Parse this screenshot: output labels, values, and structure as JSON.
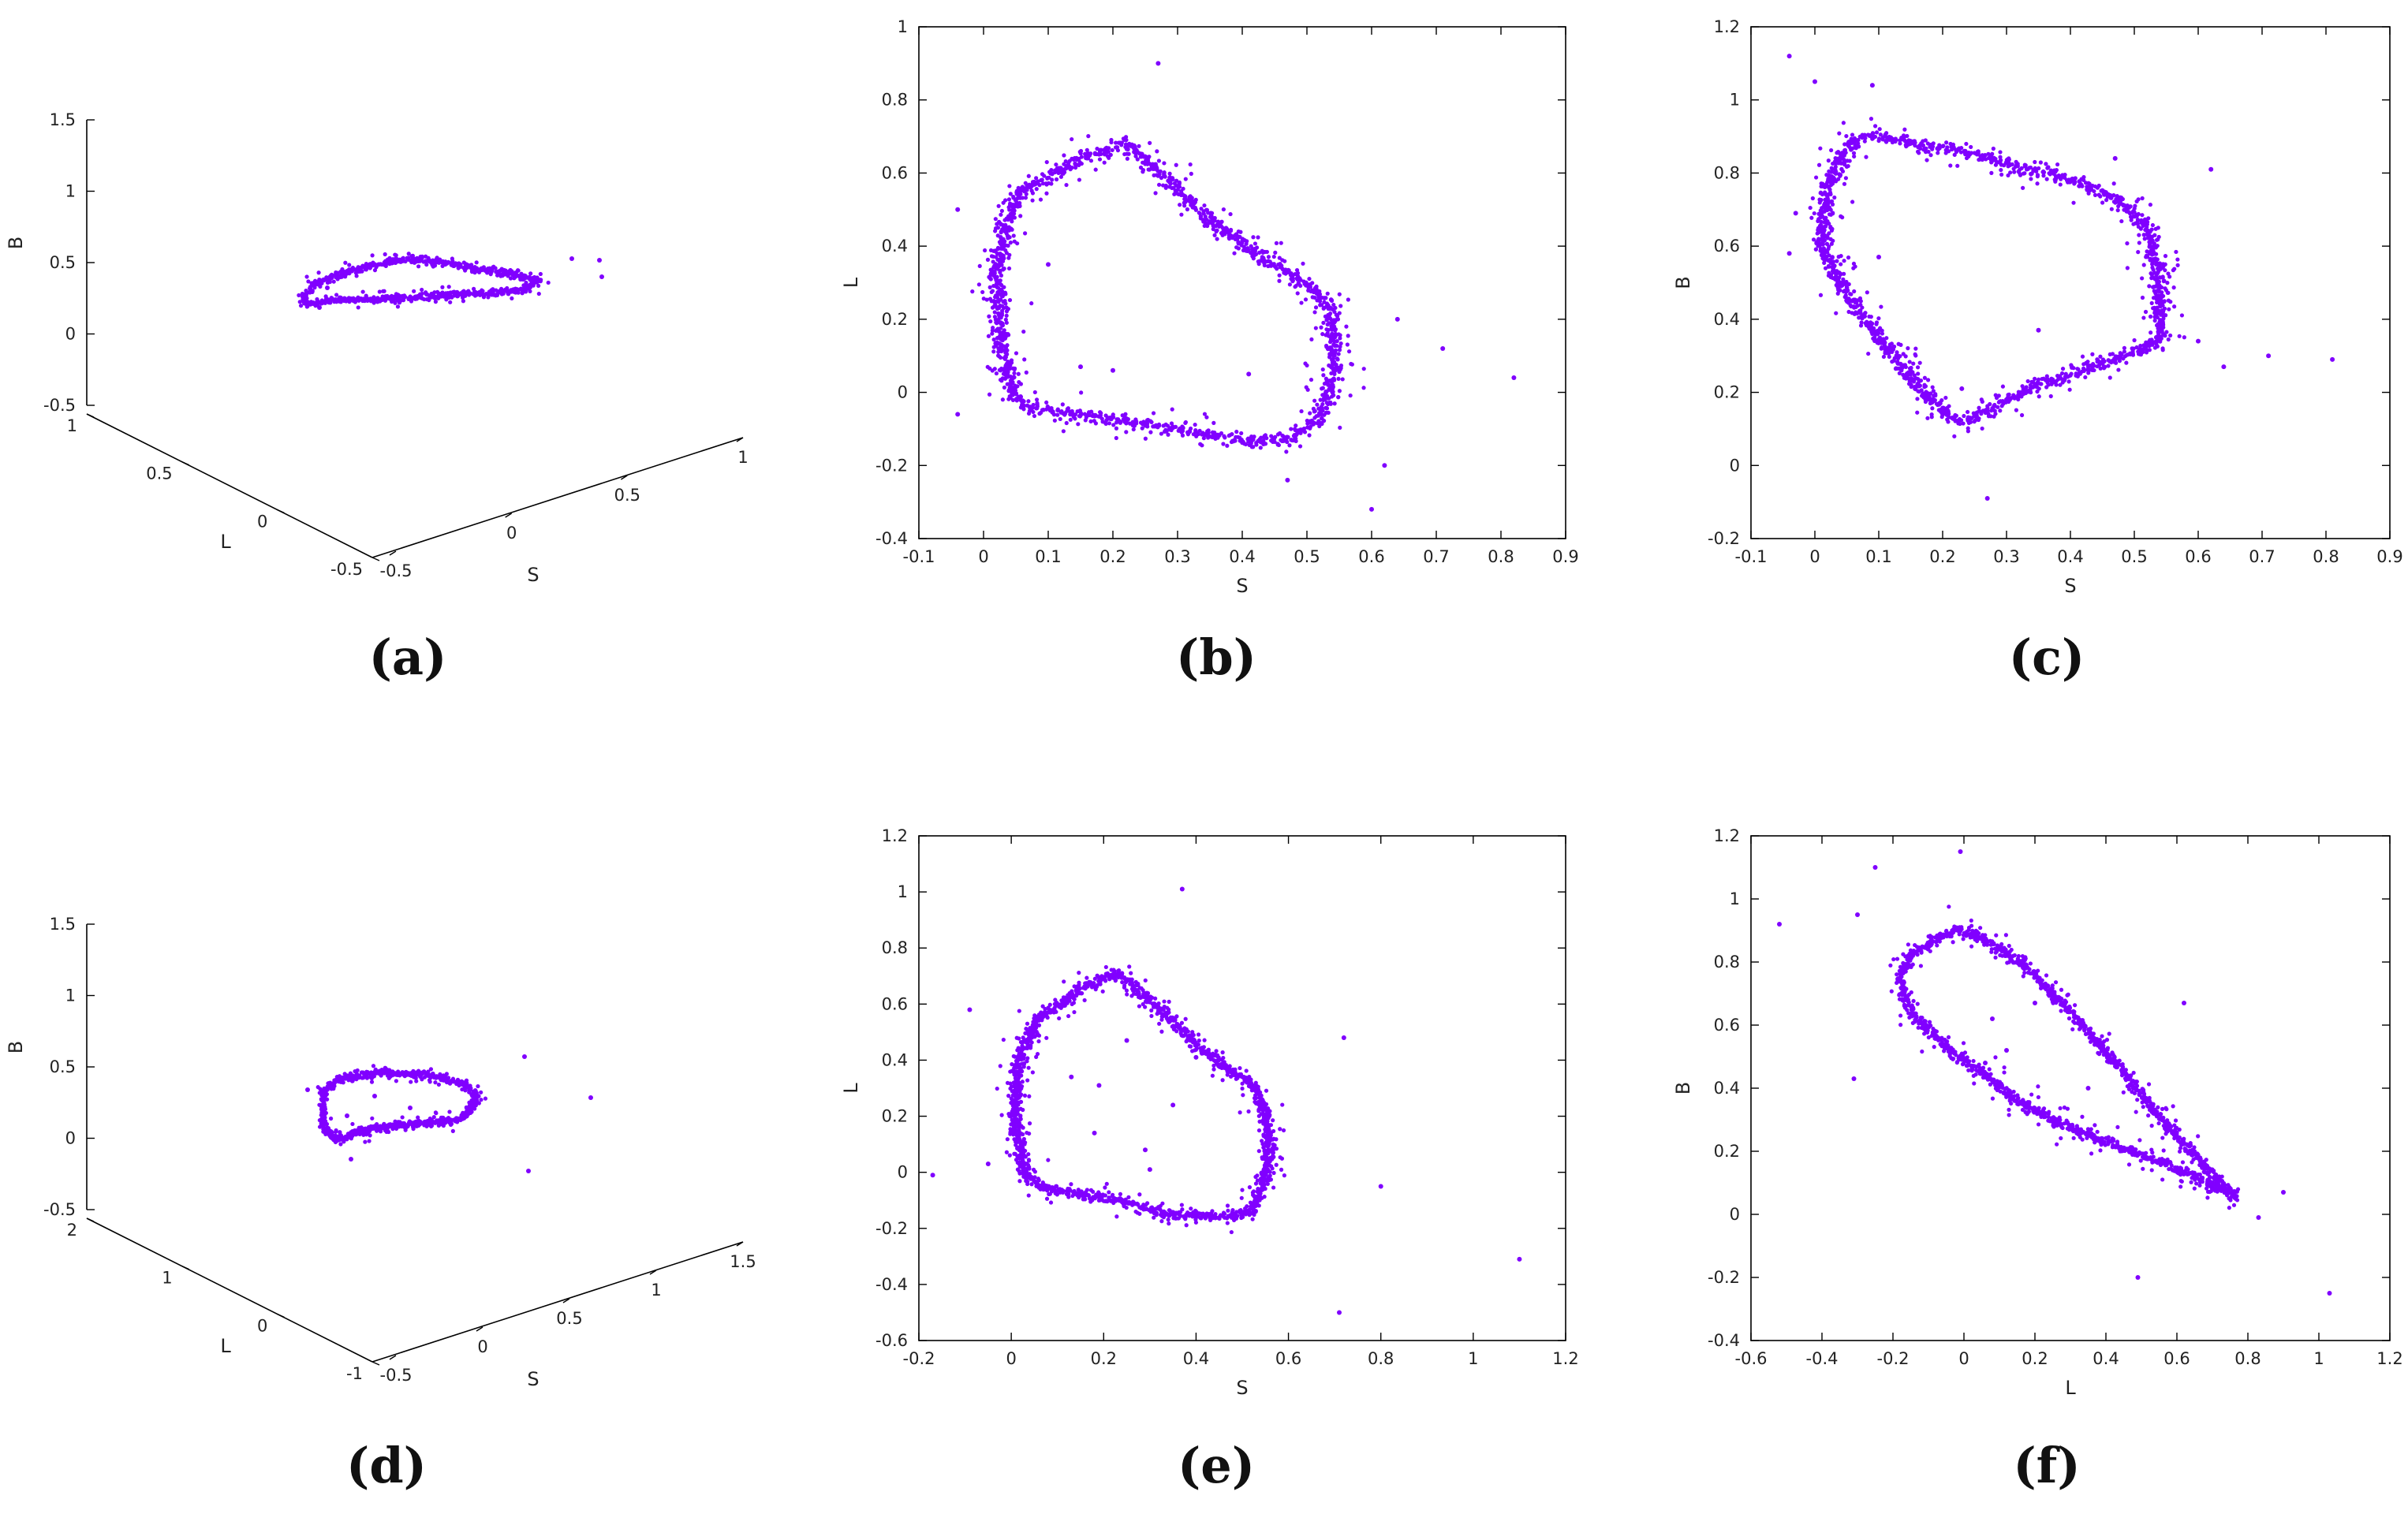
{
  "chart_data": [
    {
      "id": "a",
      "type": "scatter",
      "projection": "3d",
      "caption": "(a)",
      "xlabel": "S",
      "ylabel": "L",
      "zlabel": "B",
      "xticks": [
        "-0.5",
        "0",
        "0.5",
        "1"
      ],
      "yticks": [
        "-0.5",
        "0",
        "0.5",
        "1"
      ],
      "zticks": [
        "-0.5",
        "0",
        "0.5",
        "1",
        "1.5"
      ],
      "xlim": [
        -0.5,
        1
      ],
      "ylim": [
        -0.5,
        1
      ],
      "zlim": [
        -0.5,
        1.5
      ],
      "color": "#8000ff",
      "points": [
        [
          0.25,
          0.7,
          0.3
        ],
        [
          0.05,
          0.55,
          0.3
        ],
        [
          0.4,
          0.0,
          0.35
        ],
        [
          0.55,
          -0.1,
          0.4
        ],
        [
          0.45,
          0.2,
          0.2
        ],
        [
          0.1,
          0.65,
          0.5
        ],
        [
          0.3,
          0.4,
          0.45
        ],
        [
          0.6,
          -0.2,
          0.45
        ]
      ]
    },
    {
      "id": "b",
      "type": "scatter",
      "caption": "(b)",
      "xlabel": "S",
      "ylabel": "L",
      "xlim": [
        -0.1,
        0.9
      ],
      "ylim": [
        -0.4,
        1
      ],
      "xticks": [
        "-0.1",
        "0",
        "0.1",
        "0.2",
        "0.3",
        "0.4",
        "0.5",
        "0.6",
        "0.7",
        "0.8",
        "0.9"
      ],
      "yticks": [
        "-0.4",
        "-0.2",
        "0",
        "0.2",
        "0.4",
        "0.6",
        "0.8",
        "1"
      ],
      "color": "#8000ff",
      "loop": [
        [
          0.03,
          0.45
        ],
        [
          0.06,
          0.55
        ],
        [
          0.15,
          0.64
        ],
        [
          0.22,
          0.68
        ],
        [
          0.25,
          0.64
        ],
        [
          0.35,
          0.47
        ],
        [
          0.42,
          0.38
        ],
        [
          0.52,
          0.27
        ],
        [
          0.54,
          0.2
        ],
        [
          0.54,
          0.05
        ],
        [
          0.52,
          -0.07
        ],
        [
          0.47,
          -0.13
        ],
        [
          0.4,
          -0.13
        ],
        [
          0.3,
          -0.1
        ],
        [
          0.15,
          -0.06
        ],
        [
          0.07,
          -0.04
        ],
        [
          0.05,
          -0.02
        ],
        [
          0.03,
          0.1
        ],
        [
          0.02,
          0.3
        ]
      ],
      "outliers": [
        [
          0.82,
          0.04
        ],
        [
          0.71,
          0.12
        ],
        [
          0.64,
          0.2
        ],
        [
          0.62,
          -0.2
        ],
        [
          0.6,
          -0.32
        ],
        [
          0.27,
          0.9
        ],
        [
          0.2,
          0.06
        ],
        [
          0.15,
          0.07
        ],
        [
          0.1,
          0.35
        ],
        [
          0.41,
          0.05
        ],
        [
          -0.04,
          -0.06
        ],
        [
          -0.04,
          0.5
        ],
        [
          0.47,
          -0.24
        ]
      ]
    },
    {
      "id": "c",
      "type": "scatter",
      "caption": "(c)",
      "xlabel": "S",
      "ylabel": "B",
      "xlim": [
        -0.1,
        0.9
      ],
      "ylim": [
        -0.2,
        1.2
      ],
      "xticks": [
        "-0.1",
        "0",
        "0.1",
        "0.2",
        "0.3",
        "0.4",
        "0.5",
        "0.6",
        "0.7",
        "0.8",
        "0.9"
      ],
      "yticks": [
        "-0.2",
        "0",
        "0.2",
        "0.4",
        "0.6",
        "0.8",
        "1",
        "1.2"
      ],
      "color": "#8000ff",
      "loop": [
        [
          0.02,
          0.75
        ],
        [
          0.04,
          0.85
        ],
        [
          0.07,
          0.9
        ],
        [
          0.1,
          0.9
        ],
        [
          0.25,
          0.85
        ],
        [
          0.4,
          0.78
        ],
        [
          0.48,
          0.72
        ],
        [
          0.52,
          0.65
        ],
        [
          0.54,
          0.5
        ],
        [
          0.54,
          0.35
        ],
        [
          0.52,
          0.32
        ],
        [
          0.45,
          0.28
        ],
        [
          0.35,
          0.22
        ],
        [
          0.3,
          0.18
        ],
        [
          0.24,
          0.12
        ],
        [
          0.21,
          0.13
        ],
        [
          0.17,
          0.2
        ],
        [
          0.1,
          0.35
        ],
        [
          0.05,
          0.47
        ],
        [
          0.01,
          0.6
        ]
      ],
      "outliers": [
        [
          -0.04,
          1.12
        ],
        [
          0.0,
          1.05
        ],
        [
          0.09,
          1.04
        ],
        [
          0.71,
          0.3
        ],
        [
          0.81,
          0.29
        ],
        [
          0.62,
          0.81
        ],
        [
          0.6,
          0.34
        ],
        [
          0.64,
          0.27
        ],
        [
          0.47,
          0.84
        ],
        [
          0.35,
          0.37
        ],
        [
          0.27,
          -0.09
        ],
        [
          0.23,
          0.21
        ],
        [
          0.1,
          0.57
        ],
        [
          -0.03,
          0.69
        ],
        [
          -0.04,
          0.58
        ]
      ]
    },
    {
      "id": "d",
      "type": "scatter",
      "projection": "3d",
      "caption": "(d)",
      "xlabel": "S",
      "ylabel": "L",
      "zlabel": "B",
      "xticks": [
        "-0.5",
        "0",
        "0.5",
        "1",
        "1.5"
      ],
      "yticks": [
        "-1",
        "0",
        "1",
        "2"
      ],
      "zticks": [
        "-0.5",
        "0",
        "0.5",
        "1",
        "1.5"
      ],
      "xlim": [
        -0.5,
        1.5
      ],
      "ylim": [
        -1,
        2
      ],
      "zlim": [
        -0.5,
        1.5
      ],
      "color": "#8000ff",
      "points": [
        [
          0.3,
          0.6,
          0.3
        ],
        [
          0.1,
          0.2,
          0.4
        ],
        [
          0.5,
          -0.2,
          0.35
        ],
        [
          0.6,
          0.0,
          0.2
        ],
        [
          0.7,
          -0.5,
          0.1
        ],
        [
          0.2,
          0.8,
          0.1
        ],
        [
          0.4,
          0.3,
          0.6
        ],
        [
          1.2,
          -0.9,
          0.5
        ],
        [
          0.8,
          -0.3,
          0.5
        ],
        [
          0.5,
          0.4,
          -0.1
        ]
      ]
    },
    {
      "id": "e",
      "type": "scatter",
      "caption": "(e)",
      "xlabel": "S",
      "ylabel": "L",
      "xlim": [
        -0.2,
        1.2
      ],
      "ylim": [
        -0.6,
        1.2
      ],
      "xticks": [
        "-0.2",
        "0",
        "0.2",
        "0.4",
        "0.6",
        "0.8",
        "1",
        "1.2"
      ],
      "yticks": [
        "-0.6",
        "-0.4",
        "-0.2",
        "0",
        "0.2",
        "0.4",
        "0.6",
        "0.8",
        "1",
        "1.2"
      ],
      "color": "#8000ff",
      "loop": [
        [
          0.02,
          0.42
        ],
        [
          0.06,
          0.55
        ],
        [
          0.15,
          0.65
        ],
        [
          0.23,
          0.71
        ],
        [
          0.27,
          0.66
        ],
        [
          0.36,
          0.52
        ],
        [
          0.45,
          0.39
        ],
        [
          0.53,
          0.3
        ],
        [
          0.56,
          0.15
        ],
        [
          0.55,
          -0.02
        ],
        [
          0.52,
          -0.14
        ],
        [
          0.45,
          -0.16
        ],
        [
          0.35,
          -0.15
        ],
        [
          0.2,
          -0.09
        ],
        [
          0.07,
          -0.06
        ],
        [
          0.03,
          -0.01
        ],
        [
          0.01,
          0.15
        ],
        [
          0.01,
          0.3
        ]
      ],
      "outliers": [
        [
          1.1,
          -0.31
        ],
        [
          0.72,
          0.48
        ],
        [
          0.8,
          -0.05
        ],
        [
          0.71,
          -0.5
        ],
        [
          -0.17,
          -0.01
        ],
        [
          -0.09,
          0.58
        ],
        [
          -0.05,
          0.03
        ],
        [
          0.37,
          1.01
        ],
        [
          0.13,
          0.34
        ],
        [
          0.19,
          0.31
        ],
        [
          0.35,
          0.24
        ],
        [
          0.29,
          0.08
        ],
        [
          0.18,
          0.14
        ],
        [
          0.3,
          0.01
        ],
        [
          0.4,
          0.41
        ],
        [
          0.25,
          0.47
        ]
      ]
    },
    {
      "id": "f",
      "type": "scatter",
      "caption": "(f)",
      "xlabel": "L",
      "ylabel": "B",
      "xlim": [
        -0.6,
        1.2
      ],
      "ylim": [
        -0.4,
        1.2
      ],
      "xticks": [
        "-0.6",
        "-0.4",
        "-0.2",
        "0",
        "0.2",
        "0.4",
        "0.6",
        "0.8",
        "1",
        "1.2"
      ],
      "yticks": [
        "-0.4",
        "-0.2",
        "0",
        "0.2",
        "0.4",
        "0.6",
        "0.8",
        "1",
        "1.2"
      ],
      "color": "#8000ff",
      "loop": [
        [
          -0.18,
          0.75
        ],
        [
          -0.15,
          0.82
        ],
        [
          -0.08,
          0.87
        ],
        [
          -0.02,
          0.9
        ],
        [
          0.05,
          0.88
        ],
        [
          0.18,
          0.78
        ],
        [
          0.32,
          0.62
        ],
        [
          0.45,
          0.45
        ],
        [
          0.58,
          0.27
        ],
        [
          0.68,
          0.15
        ],
        [
          0.76,
          0.06
        ],
        [
          0.65,
          0.12
        ],
        [
          0.52,
          0.18
        ],
        [
          0.38,
          0.24
        ],
        [
          0.25,
          0.3
        ],
        [
          0.15,
          0.36
        ],
        [
          0.05,
          0.45
        ],
        [
          -0.05,
          0.53
        ],
        [
          -0.14,
          0.63
        ],
        [
          -0.17,
          0.7
        ]
      ],
      "outliers": [
        [
          -0.52,
          0.92
        ],
        [
          -0.3,
          0.95
        ],
        [
          -0.25,
          1.1
        ],
        [
          -0.31,
          0.43
        ],
        [
          -0.01,
          1.15
        ],
        [
          0.49,
          -0.2
        ],
        [
          1.03,
          -0.25
        ],
        [
          0.9,
          0.07
        ],
        [
          0.83,
          -0.01
        ],
        [
          0.62,
          0.67
        ],
        [
          0.2,
          0.67
        ],
        [
          0.06,
          0.48
        ],
        [
          0.08,
          0.62
        ],
        [
          0.35,
          0.4
        ],
        [
          0.12,
          0.52
        ]
      ]
    }
  ]
}
